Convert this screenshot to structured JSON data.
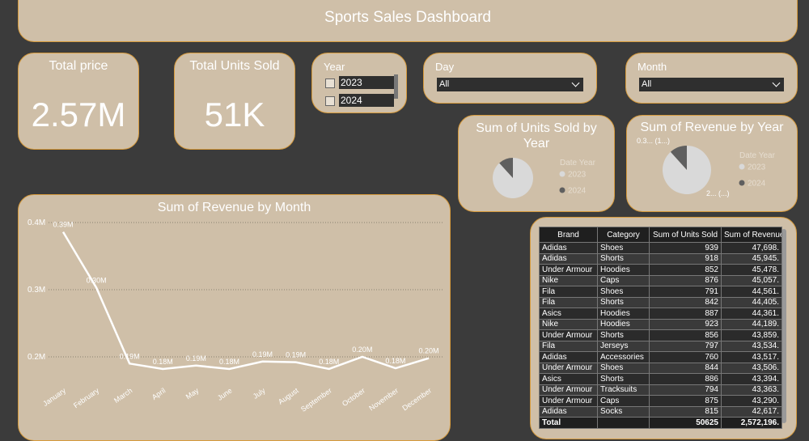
{
  "header": {
    "title": "Sports Sales Dashboard"
  },
  "cards": [
    {
      "label": "Total price",
      "value": "2.57M"
    },
    {
      "label": "Total Units Sold",
      "value": "51K"
    }
  ],
  "slicers": {
    "year": {
      "title": "Year",
      "items": [
        "2023",
        "2024"
      ]
    },
    "day": {
      "title": "Day",
      "selected": "All"
    },
    "month": {
      "title": "Month",
      "selected": "All"
    }
  },
  "chart_data": [
    {
      "type": "pie",
      "title": "Sum of Units Sold by Year",
      "legend_title": "Date Year",
      "categories": [
        "2023",
        "2024"
      ],
      "values": [
        45000,
        6000
      ],
      "colors": [
        "#d9d9d9",
        "#5f5f5f"
      ]
    },
    {
      "type": "pie",
      "title": "Sum of Revenue by Year",
      "legend_title": "Date Year",
      "categories": [
        "2023",
        "2024"
      ],
      "values": [
        2270000,
        300000
      ],
      "value_labels": [
        "2... (...)",
        "0.3... (1...)"
      ],
      "colors": [
        "#d9d9d9",
        "#5f5f5f"
      ]
    },
    {
      "type": "line",
      "title": "Sum of Revenue by Month",
      "color": "#ffffff",
      "categories": [
        "January",
        "February",
        "March",
        "April",
        "May",
        "June",
        "July",
        "August",
        "September",
        "October",
        "November",
        "December"
      ],
      "values": [
        386000,
        303000,
        190000,
        182000,
        187000,
        182000,
        193000,
        192000,
        182000,
        200000,
        183000,
        198000
      ],
      "value_labels": [
        "0.39M",
        "0.30M",
        "0.19M",
        "0.18M",
        "0.19M",
        "0.18M",
        "0.19M",
        "0.19M",
        "0.18M",
        "0.20M",
        "0.18M",
        "0.20M"
      ],
      "ylim": [
        175000,
        405000
      ],
      "yticks": [
        {
          "value": 200000,
          "label": "0.2M"
        },
        {
          "value": 300000,
          "label": "0.3M"
        },
        {
          "value": 400000,
          "label": "0.4M"
        }
      ],
      "grid": true
    }
  ],
  "table": {
    "columns": [
      "Brand",
      "Category",
      "Sum of Units Sold",
      "Sum of Revenue"
    ],
    "rows": [
      [
        "Adidas",
        "Shoes",
        "939",
        "47,698."
      ],
      [
        "Adidas",
        "Shorts",
        "918",
        "45,945."
      ],
      [
        "Under Armour",
        "Hoodies",
        "852",
        "45,478."
      ],
      [
        "Nike",
        "Caps",
        "876",
        "45,057."
      ],
      [
        "Fila",
        "Shoes",
        "791",
        "44,561."
      ],
      [
        "Fila",
        "Shorts",
        "842",
        "44,405."
      ],
      [
        "Asics",
        "Hoodies",
        "887",
        "44,361."
      ],
      [
        "Nike",
        "Hoodies",
        "923",
        "44,189."
      ],
      [
        "Under Armour",
        "Shorts",
        "856",
        "43,859."
      ],
      [
        "Fila",
        "Jerseys",
        "797",
        "43,534."
      ],
      [
        "Adidas",
        "Accessories",
        "760",
        "43,517."
      ],
      [
        "Under Armour",
        "Shoes",
        "844",
        "43,506."
      ],
      [
        "Asics",
        "Shorts",
        "886",
        "43,394."
      ],
      [
        "Under Armour",
        "Tracksuits",
        "794",
        "43,363."
      ],
      [
        "Under Armour",
        "Caps",
        "875",
        "43,290."
      ],
      [
        "Adidas",
        "Socks",
        "815",
        "42,617."
      ]
    ],
    "total": [
      "Total",
      "50625",
      "2,572,196."
    ]
  }
}
